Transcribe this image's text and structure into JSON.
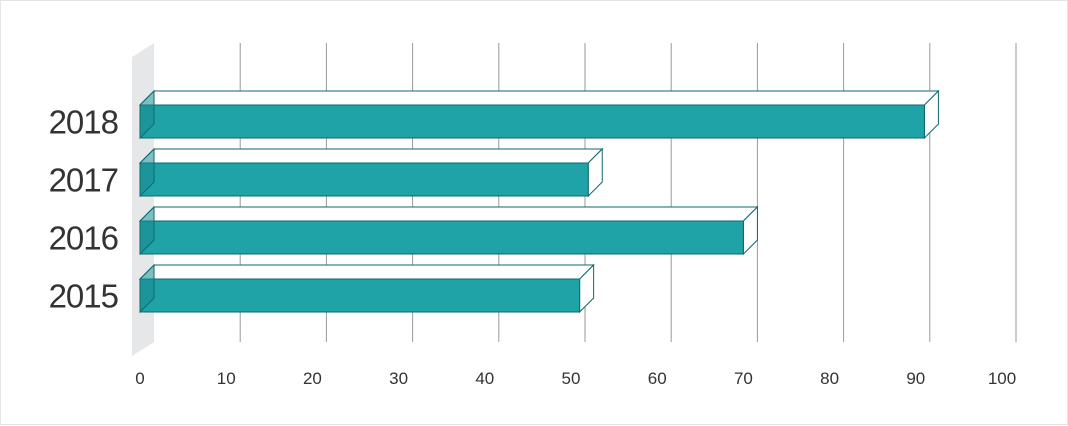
{
  "chart_data": {
    "type": "bar",
    "orientation": "horizontal",
    "style": "3d",
    "categories": [
      "2018",
      "2017",
      "2016",
      "2015"
    ],
    "values": [
      91,
      52,
      70,
      51
    ],
    "xlim": [
      0,
      100
    ],
    "xticks": [
      "0",
      "10",
      "20",
      "30",
      "40",
      "50",
      "60",
      "70",
      "80",
      "90",
      "100"
    ],
    "grid": true,
    "legend": "none",
    "title": "",
    "xlabel": "",
    "ylabel": "",
    "colors": {
      "bar": "#1fa3a7",
      "bar_dark": "#178b8e",
      "bar_outline": "#0e6a6d",
      "grid": "#9a9a9a",
      "wall": "#e6e7e8",
      "text": "#333333"
    }
  }
}
